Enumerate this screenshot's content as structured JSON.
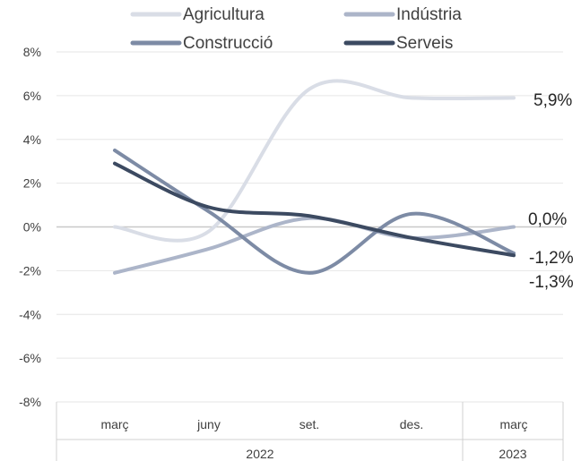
{
  "chart_data": {
    "type": "line",
    "x": [
      "2022-03",
      "2022-06",
      "2022-09",
      "2022-12",
      "2023-03"
    ],
    "categories": [
      "març",
      "juny",
      "set.",
      "des.",
      "març"
    ],
    "year_labels": [
      "2022",
      "2023"
    ],
    "ylim": [
      -8,
      8
    ],
    "yticks": [
      "-8%",
      "-6%",
      "-4%",
      "-2%",
      "0%",
      "2%",
      "4%",
      "6%",
      "8%"
    ],
    "grid": true,
    "legend_position": "top",
    "series": [
      {
        "name": "Agricultura",
        "color": "#d9dde6",
        "values": [
          0.0,
          -0.2,
          6.3,
          5.9,
          5.9
        ]
      },
      {
        "name": "Indústria",
        "color": "#acb5c9",
        "values": [
          -2.1,
          -1.0,
          0.4,
          -0.5,
          0.0
        ]
      },
      {
        "name": "Construcció",
        "color": "#7d8ba5",
        "values": [
          3.5,
          0.7,
          -2.1,
          0.6,
          -1.2
        ]
      },
      {
        "name": "Serveis",
        "color": "#3c4a61",
        "values": [
          2.9,
          0.9,
          0.5,
          -0.5,
          -1.3
        ]
      }
    ],
    "end_labels": [
      "5,9%",
      "0,0%",
      "-1,2%",
      "-1,3%"
    ]
  }
}
